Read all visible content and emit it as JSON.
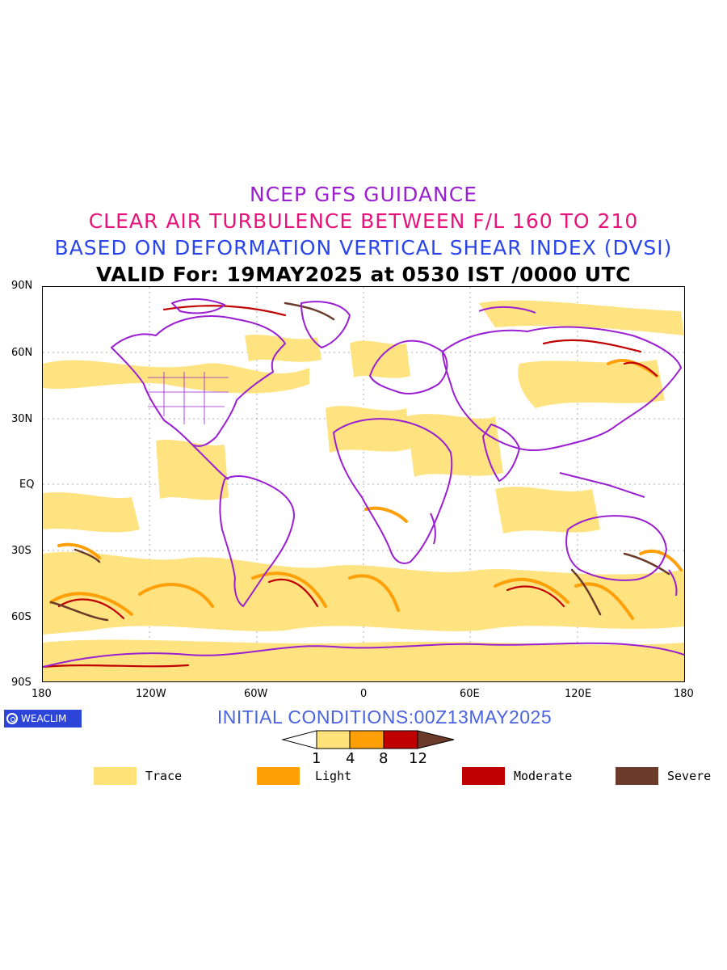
{
  "titles": {
    "line1": "NCEP GFS GUIDANCE",
    "line2": "CLEAR AIR TURBULENCE BETWEEN F/L 160 TO 210",
    "line3": "BASED ON DEFORMATION VERTICAL SHEAR INDEX (DVSI)",
    "line4": "VALID For: 19MAY2025 at 0530 IST /0000 UTC"
  },
  "axes": {
    "lat_labels": [
      "90N",
      "60N",
      "30N",
      "EQ",
      "30S",
      "60S",
      "90S"
    ],
    "lon_labels": [
      "180",
      "120W",
      "60W",
      "0",
      "60E",
      "120E",
      "180"
    ]
  },
  "logo": {
    "text": "WEACLIM"
  },
  "initial_conditions": "INITIAL CONDITIONS:00Z13MAY2025",
  "colorbar": {
    "ticks": [
      "1",
      "4",
      "8",
      "12"
    ],
    "colors": [
      "#ffe27a",
      "#ffa008",
      "#c00000",
      "#6b3a2a"
    ]
  },
  "legend": [
    {
      "label": "Trace",
      "color": "#ffe27a"
    },
    {
      "label": "Light",
      "color": "#ffa008"
    },
    {
      "label": "Moderate",
      "color": "#c00000"
    },
    {
      "label": "Severe",
      "color": "#6b3a2a"
    }
  ],
  "colors": {
    "coastline": "#9a1fd1",
    "trace": "#ffe27a",
    "light": "#ffa008",
    "moderate": "#c00000",
    "severe": "#6b3a2a"
  }
}
